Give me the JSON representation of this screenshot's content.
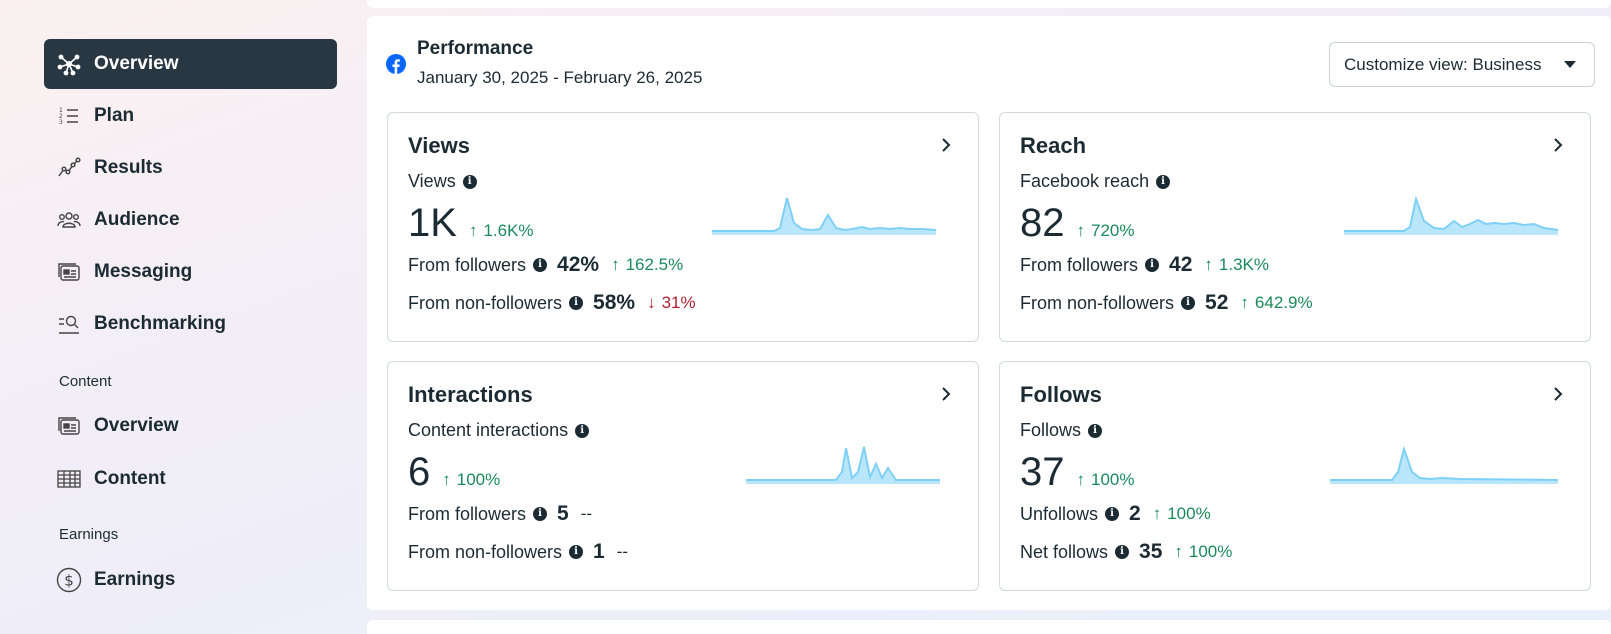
{
  "sidebar": {
    "items": [
      {
        "label": "Overview",
        "icon": "overview-icon",
        "active": true
      },
      {
        "label": "Plan",
        "icon": "plan-icon"
      },
      {
        "label": "Results",
        "icon": "results-icon"
      },
      {
        "label": "Audience",
        "icon": "audience-icon"
      },
      {
        "label": "Messaging",
        "icon": "messaging-icon"
      },
      {
        "label": "Benchmarking",
        "icon": "benchmarking-icon"
      }
    ],
    "content_section": "Content",
    "content_items": [
      {
        "label": "Overview",
        "icon": "content-overview-icon"
      },
      {
        "label": "Content",
        "icon": "table-icon"
      }
    ],
    "earnings_section": "Earnings",
    "earnings_items": [
      {
        "label": "Earnings",
        "icon": "dollar-icon"
      }
    ]
  },
  "performance": {
    "title": "Performance",
    "date_range": "January 30, 2025 - February 26, 2025",
    "customize_label": "Customize view: Business"
  },
  "cards": {
    "views": {
      "title": "Views",
      "metric_label": "Views",
      "value": "1K",
      "delta": "1.6K%",
      "rows": [
        {
          "label": "From followers",
          "value": "42%",
          "delta": "162.5%",
          "direction": "up"
        },
        {
          "label": "From non-followers",
          "value": "58%",
          "delta": "31%",
          "direction": "down"
        }
      ]
    },
    "reach": {
      "title": "Reach",
      "metric_label": "Facebook reach",
      "value": "82",
      "delta": "720%",
      "rows": [
        {
          "label": "From followers",
          "value": "42",
          "delta": "1.3K%",
          "direction": "up"
        },
        {
          "label": "From non-followers",
          "value": "52",
          "delta": "642.9%",
          "direction": "up"
        }
      ]
    },
    "interactions": {
      "title": "Interactions",
      "metric_label": "Content interactions",
      "value": "6",
      "delta": "100%",
      "rows": [
        {
          "label": "From followers",
          "value": "5",
          "delta": "--",
          "direction": "none"
        },
        {
          "label": "From non-followers",
          "value": "1",
          "delta": "--",
          "direction": "none"
        }
      ]
    },
    "follows": {
      "title": "Follows",
      "metric_label": "Follows",
      "value": "37",
      "delta": "100%",
      "rows": [
        {
          "label": "Unfollows",
          "value": "2",
          "delta": "100%",
          "direction": "up"
        },
        {
          "label": "Net follows",
          "value": "35",
          "delta": "100%",
          "direction": "up"
        }
      ]
    }
  },
  "colors": {
    "active_nav_bg": "#283742",
    "positive": "#1a8a5a",
    "negative": "#b21f2f",
    "sparkline": "#7fd0f7",
    "facebook_blue": "#0866ff"
  }
}
